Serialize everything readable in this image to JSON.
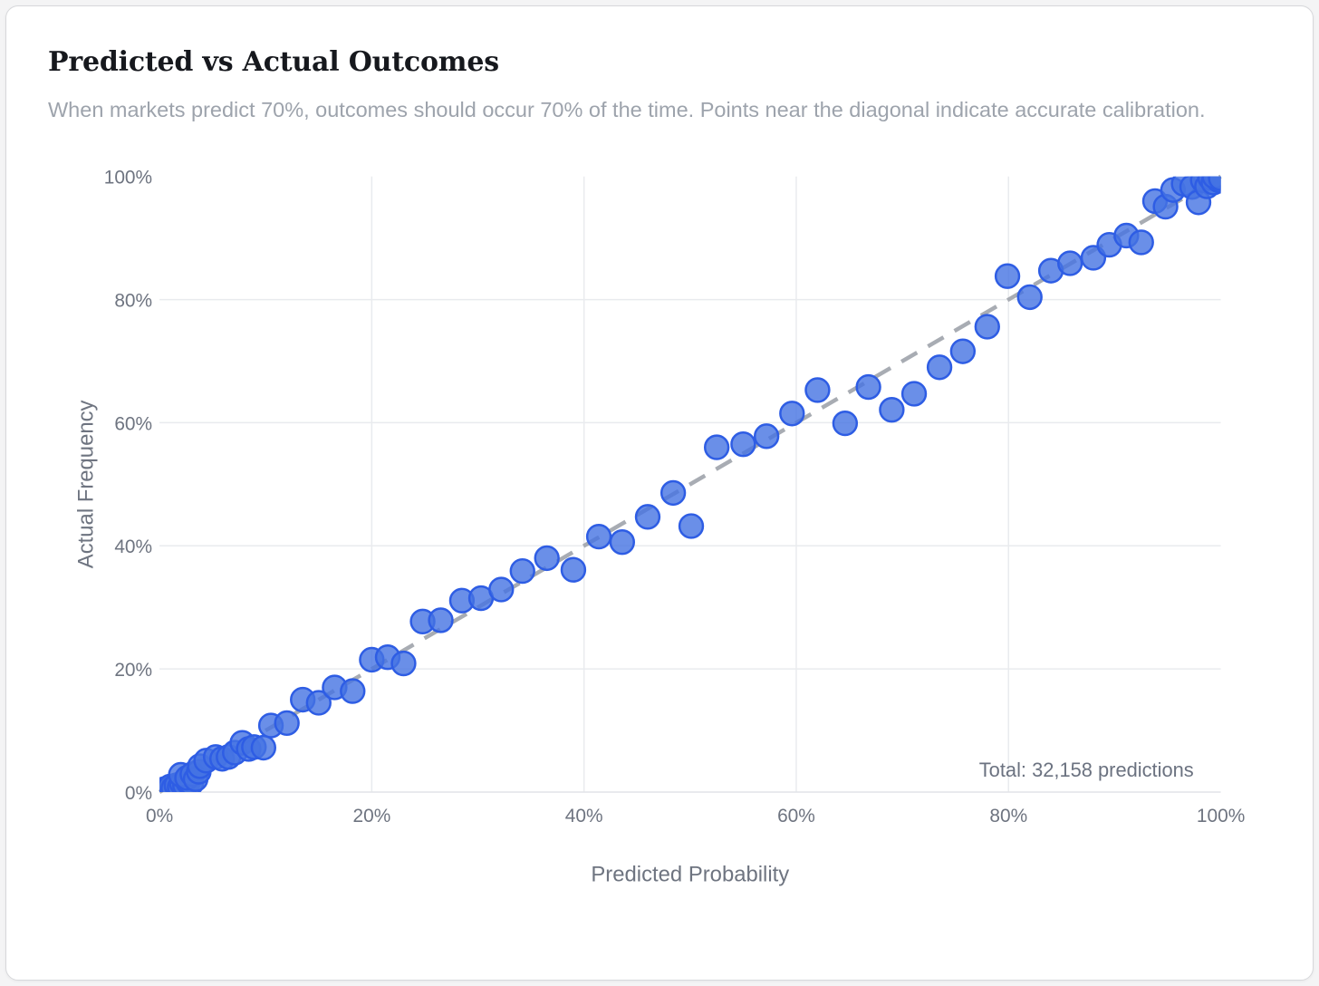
{
  "card": {
    "title": "Predicted vs Actual Outcomes",
    "subtitle": "When markets predict 70%, outcomes should occur 70% of the time. Points near the diagonal indicate accurate calibration."
  },
  "chart_data": {
    "type": "scatter",
    "title": "Predicted vs Actual Outcomes",
    "xlabel": "Predicted Probability",
    "ylabel": "Actual Frequency",
    "xlim": [
      0,
      100
    ],
    "ylim": [
      0,
      100
    ],
    "x_ticks": [
      "0%",
      "20%",
      "40%",
      "60%",
      "80%",
      "100%"
    ],
    "y_ticks": [
      "0%",
      "20%",
      "40%",
      "60%",
      "80%",
      "100%"
    ],
    "tick_values": [
      0,
      20,
      40,
      60,
      80,
      100
    ],
    "grid": true,
    "legend": "none",
    "annotation": "Total: 32,158 predictions",
    "reference_line": {
      "style": "dashed",
      "from": [
        0,
        0
      ],
      "to": [
        100,
        100
      ]
    },
    "points": [
      [
        0.2,
        0.2
      ],
      [
        0.5,
        0.5
      ],
      [
        0.8,
        0.3
      ],
      [
        1.0,
        0.9
      ],
      [
        1.3,
        0.6
      ],
      [
        1.6,
        1.1
      ],
      [
        1.9,
        0.8
      ],
      [
        2.1,
        1.4
      ],
      [
        2.4,
        1.1
      ],
      [
        2.7,
        1.6
      ],
      [
        3.0,
        1.4
      ],
      [
        2.0,
        2.8
      ],
      [
        2.6,
        2.3
      ],
      [
        3.1,
        2.9
      ],
      [
        3.4,
        2.1
      ],
      [
        3.7,
        3.3
      ],
      [
        3.8,
        4.2
      ],
      [
        4.4,
        5.1
      ],
      [
        5.3,
        5.7
      ],
      [
        5.9,
        5.4
      ],
      [
        6.5,
        5.7
      ],
      [
        7.1,
        6.4
      ],
      [
        7.8,
        8.0
      ],
      [
        8.4,
        7.0
      ],
      [
        8.9,
        7.3
      ],
      [
        9.8,
        7.2
      ],
      [
        10.5,
        10.8
      ],
      [
        12.0,
        11.2
      ],
      [
        13.5,
        15.0
      ],
      [
        15.0,
        14.5
      ],
      [
        16.5,
        17.0
      ],
      [
        18.2,
        16.4
      ],
      [
        20.0,
        21.5
      ],
      [
        21.5,
        21.9
      ],
      [
        23.0,
        20.9
      ],
      [
        24.8,
        27.7
      ],
      [
        26.5,
        27.9
      ],
      [
        28.5,
        31.1
      ],
      [
        30.3,
        31.5
      ],
      [
        32.2,
        32.9
      ],
      [
        34.2,
        35.9
      ],
      [
        36.5,
        38.0
      ],
      [
        39.0,
        36.1
      ],
      [
        41.4,
        41.5
      ],
      [
        43.6,
        40.6
      ],
      [
        46.0,
        44.7
      ],
      [
        48.4,
        48.6
      ],
      [
        50.1,
        43.2
      ],
      [
        52.5,
        56.0
      ],
      [
        55.0,
        56.5
      ],
      [
        57.2,
        57.8
      ],
      [
        59.6,
        61.5
      ],
      [
        62.0,
        65.3
      ],
      [
        64.6,
        59.9
      ],
      [
        66.8,
        65.8
      ],
      [
        69.0,
        62.1
      ],
      [
        71.1,
        64.7
      ],
      [
        73.5,
        69.0
      ],
      [
        75.7,
        71.6
      ],
      [
        78.0,
        75.6
      ],
      [
        79.9,
        83.8
      ],
      [
        82.0,
        80.4
      ],
      [
        84.0,
        84.7
      ],
      [
        85.8,
        85.9
      ],
      [
        88.0,
        86.8
      ],
      [
        89.5,
        88.9
      ],
      [
        91.1,
        90.4
      ],
      [
        92.5,
        89.3
      ],
      [
        93.8,
        96.0
      ],
      [
        94.8,
        95.1
      ],
      [
        95.5,
        97.8
      ],
      [
        96.5,
        98.8
      ],
      [
        97.3,
        98.3
      ],
      [
        97.9,
        95.8
      ],
      [
        98.3,
        99.4
      ],
      [
        98.7,
        98.4
      ],
      [
        99.0,
        99.8
      ],
      [
        99.3,
        99.0
      ],
      [
        99.5,
        100
      ],
      [
        99.8,
        99.4
      ],
      [
        99.6,
        99.9
      ],
      [
        99.9,
        99.8
      ],
      [
        100,
        99.3
      ],
      [
        100,
        100
      ],
      [
        99.4,
        100
      ],
      [
        100,
        99.7
      ]
    ],
    "colors": {
      "point_fill": "#4573e2",
      "point_stroke": "#2e5de4",
      "reference_line": "#a8acb3",
      "grid": "#e9ebee",
      "axis_line": "#e2e4e8",
      "axis_text": "#6e7480",
      "annotation_text": "#6b7280"
    }
  }
}
